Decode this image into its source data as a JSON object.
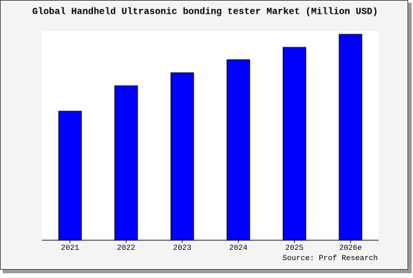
{
  "chart_data": {
    "type": "bar",
    "title": "Global Handheld Ultrasonic bonding tester Market (Million USD)",
    "source": "Source: Prof Research",
    "categories": [
      "2021",
      "2022",
      "2023",
      "2024",
      "2025",
      "2026e"
    ],
    "values": [
      188,
      225,
      244,
      263,
      281,
      300
    ],
    "color": "#0000ff",
    "ylim": [
      0,
      305
    ]
  }
}
